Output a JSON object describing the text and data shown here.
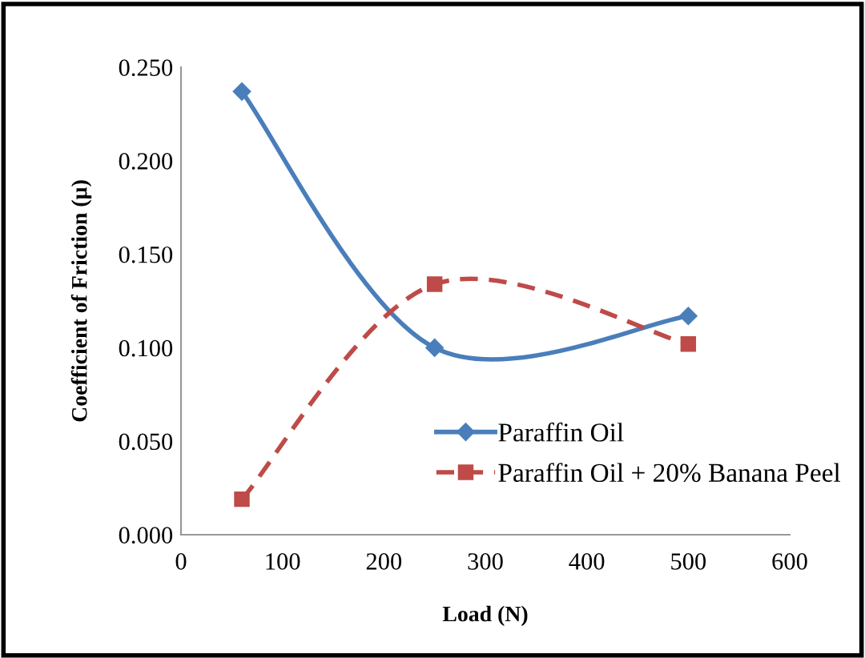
{
  "chart_data": {
    "type": "line",
    "xlabel": "Load (N)",
    "ylabel": "Coefficient of Friction (µ)",
    "x": [
      60,
      250,
      500
    ],
    "series": [
      {
        "name": "Paraffin Oil",
        "color": "#4a7ebb",
        "values": [
          0.237,
          0.1,
          0.117
        ],
        "marker": "diamond",
        "line_style": "solid"
      },
      {
        "name": "Paraffin Oil + 20% Banana Peel",
        "color": "#be4b48",
        "values": [
          0.019,
          0.134,
          0.102
        ],
        "marker": "square",
        "line_style": "dashed"
      }
    ],
    "xlim": [
      0,
      600
    ],
    "xticks": [
      0,
      100,
      200,
      300,
      400,
      500,
      600
    ],
    "ylim": [
      0,
      0.25
    ],
    "yticks": [
      {
        "value": 0,
        "label": "0.000"
      },
      {
        "value": 0.05,
        "label": "0.050"
      },
      {
        "value": 0.1,
        "label": "0.100"
      },
      {
        "value": 0.15,
        "label": "0.150"
      },
      {
        "value": 0.2,
        "label": "0.200"
      },
      {
        "value": 0.25,
        "label": "0.250"
      }
    ],
    "grid": false,
    "legend": "bottom"
  }
}
